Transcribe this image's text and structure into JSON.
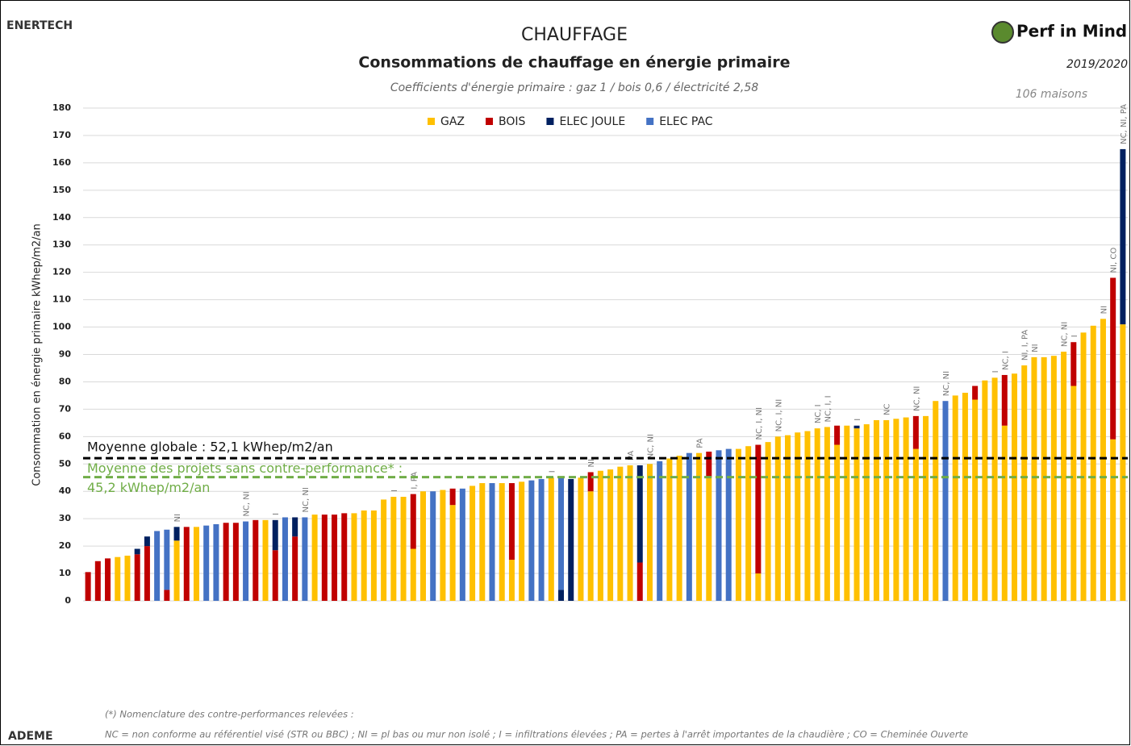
{
  "brand_left": "ENERTECH",
  "brand_bottom": "ADEME",
  "logo": "Perf in Mind",
  "period": "2019/2020",
  "sample": "106 maisons",
  "footnote_title": "(*) Nomenclature des contre-performances relevées :",
  "footnote": "NC = non conforme au référentiel visé (STR ou BBC) ; NI = pl bas ou mur non isolé ; I = infiltrations élevées ; PA = pertes à l'arrêt importantes de la chaudière ; CO = Cheminée Ouverte",
  "chart_data": {
    "type": "stacked_bar",
    "title": "CHAUFFAGE",
    "subtitle": "Consommations de chauffage en énergie primaire",
    "note": "Coefficients d'énergie primaire : gaz 1 / bois 0,6 / électricité 2,58",
    "y_label": "Consommation en énergie primaire kWhep/m2/an",
    "ylim": [
      0,
      180
    ],
    "yticks": [
      0,
      10,
      20,
      30,
      40,
      50,
      60,
      70,
      80,
      90,
      100,
      110,
      120,
      130,
      140,
      150,
      160,
      170,
      180
    ],
    "grid": true,
    "series": [
      {
        "name": "GAZ",
        "color": "#ffc000",
        "values": [
          null,
          null,
          null,
          16,
          16.5,
          null,
          null,
          null,
          null,
          22,
          null,
          27,
          null,
          null,
          null,
          null,
          null,
          null,
          29.5,
          null,
          null,
          null,
          null,
          31.5,
          null,
          null,
          null,
          32,
          33,
          33,
          37,
          38,
          38,
          19,
          40,
          null,
          40.5,
          35,
          null,
          42,
          43,
          null,
          43,
          15,
          43.5,
          null,
          null,
          45,
          null,
          null,
          45,
          40,
          47.5,
          48,
          49,
          49.5,
          null,
          50,
          null,
          52,
          53,
          null,
          54,
          45,
          null,
          null,
          55.5,
          56.5,
          10,
          58,
          60,
          60.5,
          61.5,
          62,
          63,
          63.5,
          57,
          64,
          63,
          64.5,
          66,
          66,
          66.5,
          67,
          55.5,
          67.5,
          73,
          null,
          75,
          76,
          73.5,
          80.5,
          81.5,
          64,
          83,
          86,
          89,
          89,
          89.5,
          91,
          78.5,
          98,
          100.5,
          103,
          59,
          101
        ]
      },
      {
        "name": "BOIS",
        "color": "#c00000",
        "values": [
          10.5,
          14.5,
          15.5,
          null,
          null,
          17,
          20,
          null,
          4,
          null,
          27,
          null,
          null,
          null,
          28.5,
          28.5,
          null,
          29.5,
          null,
          18.5,
          null,
          23.5,
          null,
          null,
          31.5,
          31.5,
          32,
          null,
          null,
          null,
          null,
          null,
          null,
          20,
          null,
          null,
          null,
          6,
          null,
          null,
          null,
          null,
          null,
          28,
          null,
          null,
          null,
          null,
          null,
          null,
          null,
          7,
          null,
          null,
          null,
          null,
          14,
          null,
          null,
          null,
          null,
          null,
          null,
          9.5,
          null,
          null,
          null,
          null,
          47,
          null,
          null,
          null,
          null,
          null,
          null,
          null,
          7,
          null,
          null,
          null,
          null,
          null,
          null,
          null,
          12,
          null,
          null,
          null,
          null,
          null,
          5,
          null,
          null,
          18.5,
          null,
          null,
          null,
          null,
          null,
          null,
          16,
          null,
          null,
          null,
          59,
          null
        ]
      },
      {
        "name": "ELEC JOULE",
        "color": "#002060",
        "values": [
          null,
          null,
          null,
          null,
          null,
          2,
          3.5,
          null,
          null,
          5,
          null,
          null,
          null,
          null,
          null,
          null,
          null,
          null,
          null,
          11,
          null,
          7,
          null,
          null,
          null,
          null,
          null,
          null,
          null,
          null,
          null,
          null,
          null,
          null,
          null,
          null,
          null,
          null,
          null,
          null,
          null,
          null,
          null,
          null,
          null,
          null,
          null,
          null,
          4,
          44.5,
          null,
          null,
          null,
          null,
          null,
          null,
          35.5,
          null,
          null,
          null,
          null,
          null,
          null,
          null,
          null,
          null,
          null,
          null,
          null,
          null,
          null,
          null,
          null,
          null,
          null,
          null,
          null,
          null,
          1,
          null,
          null,
          null,
          null,
          null,
          null,
          null,
          null,
          null,
          null,
          null,
          null,
          null,
          null,
          null,
          null,
          null,
          null,
          null,
          null,
          null,
          null,
          null,
          null,
          null,
          null,
          64
        ]
      },
      {
        "name": "ELEC PAC",
        "color": "#4472c4",
        "values": [
          null,
          null,
          null,
          null,
          null,
          null,
          null,
          25.5,
          22,
          null,
          null,
          null,
          27.5,
          28,
          null,
          null,
          29,
          null,
          null,
          null,
          30.5,
          null,
          30.5,
          null,
          null,
          null,
          null,
          null,
          null,
          null,
          null,
          null,
          null,
          null,
          null,
          40,
          null,
          null,
          41,
          null,
          null,
          43,
          null,
          null,
          null,
          44,
          44.5,
          null,
          41,
          null,
          null,
          null,
          null,
          null,
          null,
          null,
          null,
          null,
          51,
          null,
          null,
          54,
          null,
          null,
          55,
          55.5,
          null,
          null,
          null,
          null,
          null,
          null,
          null,
          null,
          null,
          null,
          null,
          null,
          null,
          null,
          null,
          null,
          null,
          null,
          null,
          null,
          null,
          73,
          null,
          null,
          null,
          null,
          null,
          null,
          null,
          null,
          null,
          null,
          null,
          null,
          null,
          null,
          null,
          null,
          null,
          null
        ]
      }
    ],
    "bar_annotations": [
      null,
      null,
      null,
      null,
      null,
      null,
      null,
      null,
      null,
      "NI",
      null,
      null,
      null,
      null,
      null,
      null,
      "NC, NI",
      null,
      null,
      "I",
      null,
      null,
      "NC, NI",
      null,
      null,
      null,
      null,
      null,
      null,
      null,
      null,
      "I",
      null,
      "I, PA",
      null,
      null,
      null,
      null,
      null,
      null,
      null,
      null,
      null,
      null,
      null,
      null,
      null,
      "I",
      null,
      null,
      null,
      "NI",
      null,
      null,
      null,
      "PA",
      null,
      "NC, NI",
      null,
      null,
      null,
      null,
      "PA",
      null,
      null,
      null,
      null,
      null,
      "NC, I, NI",
      null,
      "NC, I, NI",
      null,
      null,
      null,
      "NC, I",
      "NC, I, I",
      null,
      null,
      "I",
      null,
      null,
      "NC",
      null,
      null,
      "NC, NI",
      null,
      null,
      "NC, NI",
      null,
      null,
      null,
      null,
      "I",
      "NC, I",
      null,
      "NI, I, PA",
      "NI",
      null,
      null,
      "NC, NI",
      "I",
      null,
      null,
      "NI",
      "NI, CO",
      "NC, NI, PA"
    ],
    "reference_lines": [
      {
        "value": 52.1,
        "color": "#000000",
        "label": [
          "Moyenne globale : 52,1 kWhep/m2/an"
        ]
      },
      {
        "value": 45.2,
        "color": "#70ad47",
        "label": [
          "Moyenne des projets sans contre-performance* :",
          "45,2 kWhep/m2/an"
        ]
      }
    ]
  }
}
